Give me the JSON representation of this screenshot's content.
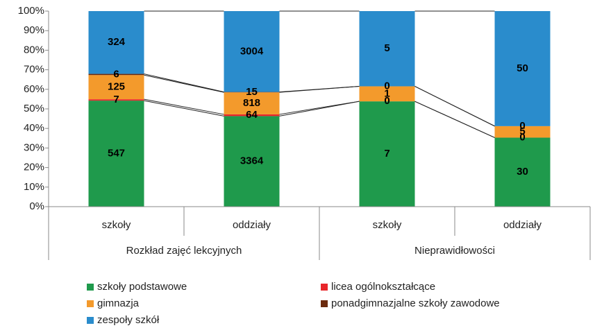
{
  "chart_data": {
    "type": "stacked_100_bar",
    "categories": [
      "szkoły",
      "oddziały",
      "szkoły",
      "oddziały"
    ],
    "groups": [
      {
        "label": "Rozkład zajęć lekcyjnych",
        "span": 2
      },
      {
        "label": "Nieprawidłowości",
        "span": 2
      }
    ],
    "series": [
      {
        "name": "szkoły podstawowe",
        "color": "#1f9a4c",
        "values": [
          547,
          3364,
          7,
          30
        ]
      },
      {
        "name": "licea ogólnokształcące",
        "color": "#e8262b",
        "values": [
          7,
          64,
          0,
          0
        ]
      },
      {
        "name": "gimnazja",
        "color": "#f39a2c",
        "values": [
          125,
          818,
          1,
          5
        ]
      },
      {
        "name": "ponadgimnazjalne szkoły zawodowe",
        "color": "#6b2a0e",
        "values": [
          6,
          15,
          0,
          0
        ]
      },
      {
        "name": "zespoły szkół",
        "color": "#2a8ccc",
        "values": [
          324,
          3004,
          5,
          50
        ]
      }
    ],
    "ylim": [
      0,
      100
    ],
    "yticks": [
      {
        "value": 0,
        "label": "0%"
      },
      {
        "value": 10,
        "label": "10%"
      },
      {
        "value": 20,
        "label": "20%"
      },
      {
        "value": 30,
        "label": "30%"
      },
      {
        "value": 40,
        "label": "40%"
      },
      {
        "value": 50,
        "label": "50%"
      },
      {
        "value": 60,
        "label": "60%"
      },
      {
        "value": 70,
        "label": "70%"
      },
      {
        "value": 80,
        "label": "80%"
      },
      {
        "value": 90,
        "label": "90%"
      },
      {
        "value": 100,
        "label": "100%"
      }
    ],
    "legend": "bottom"
  }
}
